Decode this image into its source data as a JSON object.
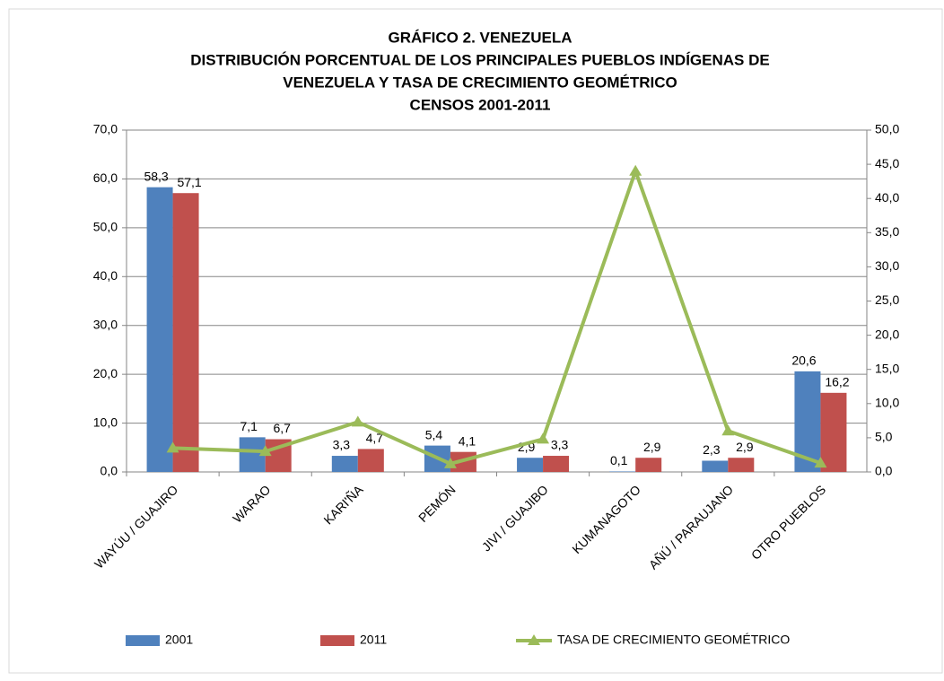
{
  "chart_data": {
    "type": "bar",
    "title": [
      "GRÁFICO 2. VENEZUELA",
      "DISTRIBUCIÓN PORCENTUAL DE LOS PRINCIPALES PUEBLOS INDÍGENAS DE",
      "VENEZUELA Y TASA DE CRECIMIENTO GEOMÉTRICO",
      "CENSOS 2001-2011"
    ],
    "categories": [
      "WAYÚU / GUAJIRO",
      "WARAO",
      "KARI'ÑA",
      "PEMÓN",
      "JIVI / GUAJIBO",
      "KUMANAGOTO",
      "AÑÚ / PARAUJANO",
      "OTRO PUEBLOS"
    ],
    "series": [
      {
        "name": "2001",
        "color": "#4f81bd",
        "type": "bar",
        "values": [
          58.3,
          7.1,
          3.3,
          5.4,
          2.9,
          0.1,
          2.3,
          20.6
        ],
        "value_labels": [
          "58,3",
          "7,1",
          "3,3",
          "5,4",
          "2,9",
          "0,1",
          "2,3",
          "20,6"
        ]
      },
      {
        "name": "2011",
        "color": "#c0504d",
        "type": "bar",
        "values": [
          57.1,
          6.7,
          4.7,
          4.1,
          3.3,
          2.9,
          2.9,
          16.2
        ],
        "value_labels": [
          "57,1",
          "6,7",
          "4,7",
          "4,1",
          "3,3",
          "2,9",
          "2,9",
          "16,2"
        ]
      },
      {
        "name": "TASA DE CRECIMIENTO  GEOMÉTRICO",
        "color": "#9bbb59",
        "type": "line",
        "axis": "y2",
        "values": [
          3.5,
          3.0,
          7.3,
          1.2,
          4.8,
          44.0,
          6.0,
          1.3
        ]
      }
    ],
    "ylim": [
      0,
      70
    ],
    "yticks": [
      {
        "value": 0,
        "label": "0,0"
      },
      {
        "value": 10,
        "label": "10,0"
      },
      {
        "value": 20,
        "label": "20,0"
      },
      {
        "value": 30,
        "label": "30,0"
      },
      {
        "value": 40,
        "label": "40,0"
      },
      {
        "value": 50,
        "label": "50,0"
      },
      {
        "value": 60,
        "label": "60,0"
      },
      {
        "value": 70,
        "label": "70,0"
      }
    ],
    "y2lim": [
      0,
      50
    ],
    "y2ticks": [
      {
        "value": 0,
        "label": "0,0"
      },
      {
        "value": 5,
        "label": "5,0"
      },
      {
        "value": 10,
        "label": "10,0"
      },
      {
        "value": 15,
        "label": "15,0"
      },
      {
        "value": 20,
        "label": "20,0"
      },
      {
        "value": 25,
        "label": "25,0"
      },
      {
        "value": 30,
        "label": "30,0"
      },
      {
        "value": 35,
        "label": "35,0"
      },
      {
        "value": 40,
        "label": "40,0"
      },
      {
        "value": 45,
        "label": "45,0"
      },
      {
        "value": 50,
        "label": "50,0"
      }
    ],
    "grid": true,
    "legend": "bottom"
  }
}
